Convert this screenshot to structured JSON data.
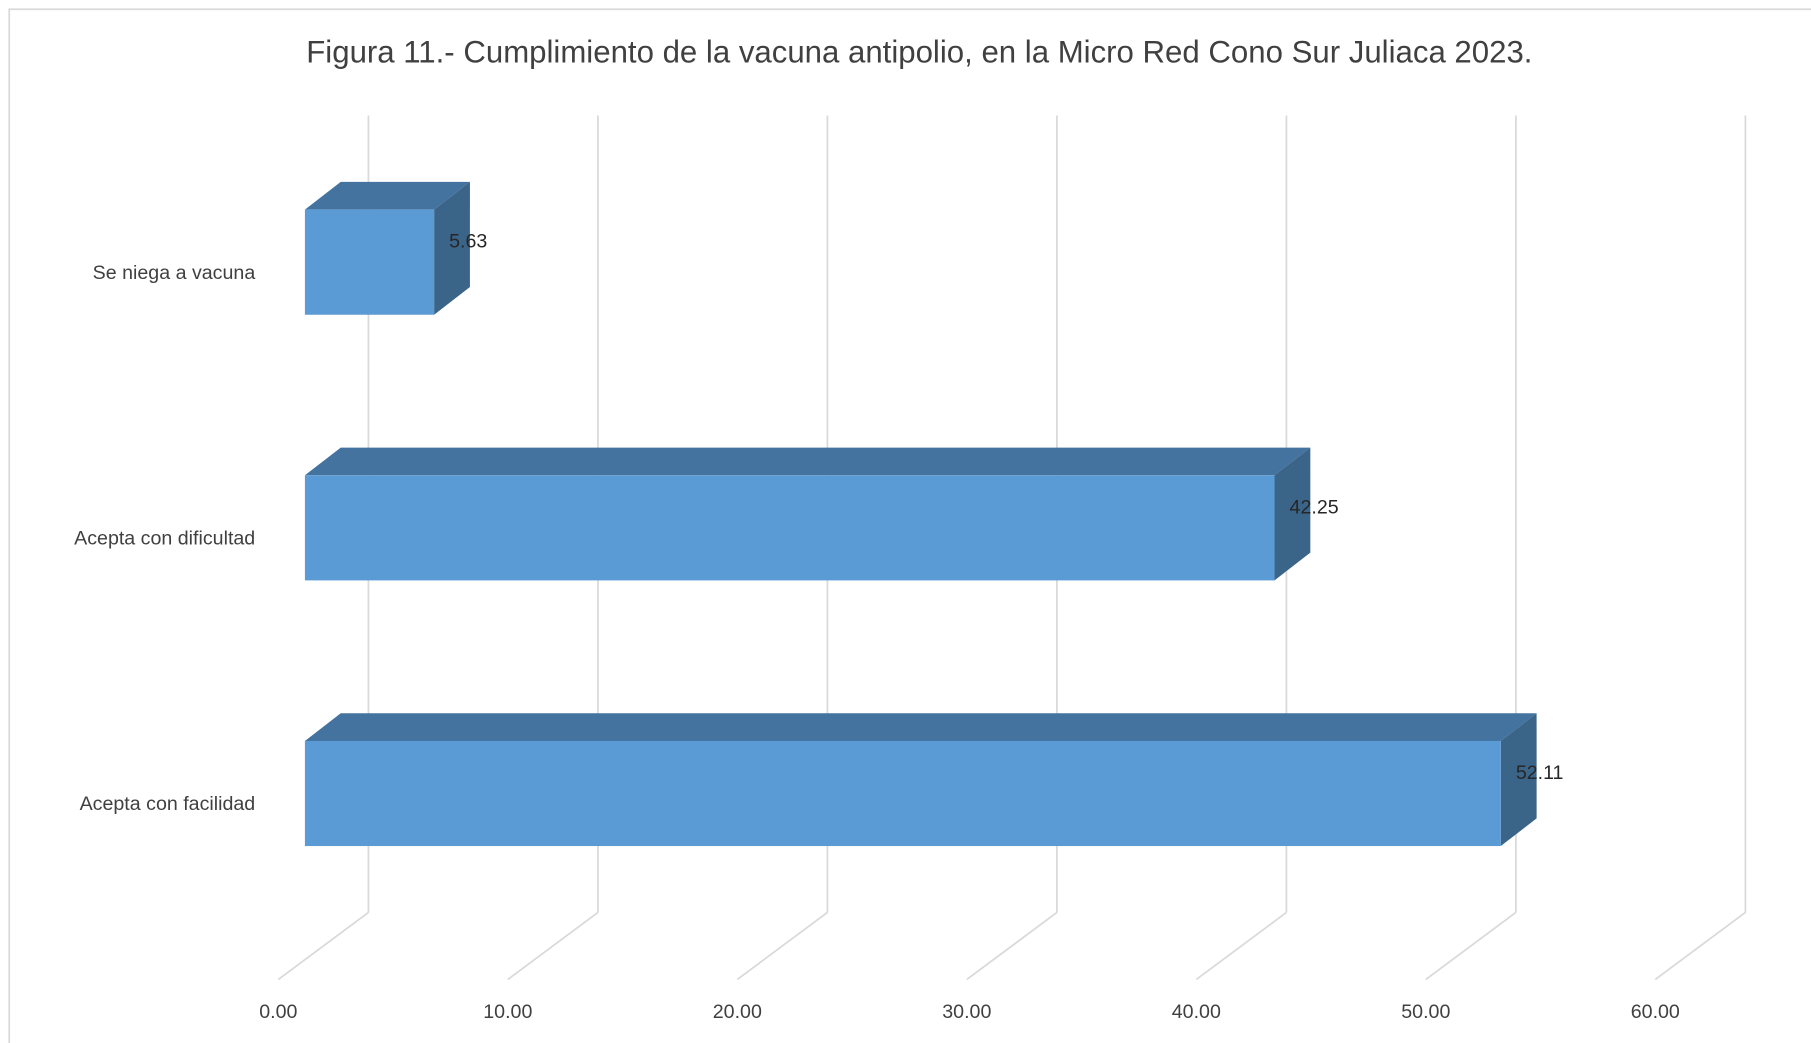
{
  "chart_data": {
    "type": "bar3d_horizontal",
    "title": "Figura  11.- Cumplimiento de la vacuna antipolio, en la Micro Red Cono Sur Juliaca 2023.",
    "categories": [
      "Acepta con facilidad",
      "Acepta con dificultad",
      "Se niega a vacuna"
    ],
    "values": [
      52.11,
      42.25,
      5.63
    ],
    "color": "#5b9bd5",
    "xlim": [
      0,
      60
    ],
    "xticks": [
      {
        "value": 0,
        "label": "0.00"
      },
      {
        "value": 10,
        "label": "10.00"
      },
      {
        "value": 20,
        "label": "20.00"
      },
      {
        "value": 30,
        "label": "30.00"
      },
      {
        "value": 40,
        "label": "40.00"
      },
      {
        "value": 50,
        "label": "50.00"
      },
      {
        "value": 60,
        "label": "60.00"
      }
    ],
    "grid": true
  }
}
